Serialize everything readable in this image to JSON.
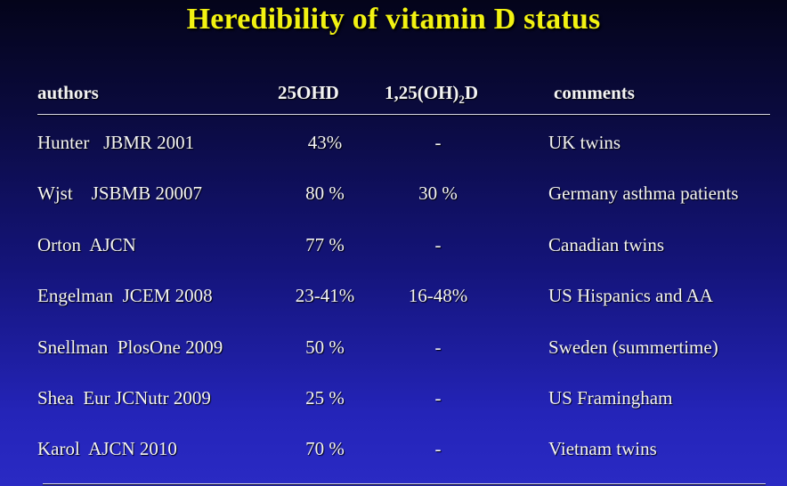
{
  "title": "Heredibility of vitamin D status",
  "headers": {
    "authors": "authors",
    "ohd": "25OHD",
    "dihydroxy_prefix": "1,25(OH)",
    "dihydroxy_sub": "2",
    "dihydroxy_suffix": "D",
    "comments": "comments"
  },
  "rows": [
    {
      "author": "Hunter   JBMR 2001",
      "ohd": "43%",
      "dihydroxy": "-",
      "comment": "UK twins"
    },
    {
      "author": "Wjst    JSBMB 20007",
      "ohd": "80 %",
      "dihydroxy": "30 %",
      "comment": "Germany asthma patients"
    },
    {
      "author": "Orton  AJCN",
      "ohd": "77 %",
      "dihydroxy": "-",
      "comment": "Canadian twins"
    },
    {
      "author": "Engelman  JCEM 2008",
      "ohd": "23-41%",
      "dihydroxy": "16-48%",
      "comment": "US Hispanics and AA"
    },
    {
      "author": "Snellman  PlosOne 2009",
      "ohd": "50 %",
      "dihydroxy": "-",
      "comment": "Sweden (summertime)"
    },
    {
      "author": "Shea  Eur JCNutr 2009",
      "ohd": "25 %",
      "dihydroxy": "-",
      "comment": "US Framingham"
    },
    {
      "author": "Karol  AJCN 2010",
      "ohd": "70 %",
      "dihydroxy": "-",
      "comment": "Vietnam twins"
    }
  ]
}
